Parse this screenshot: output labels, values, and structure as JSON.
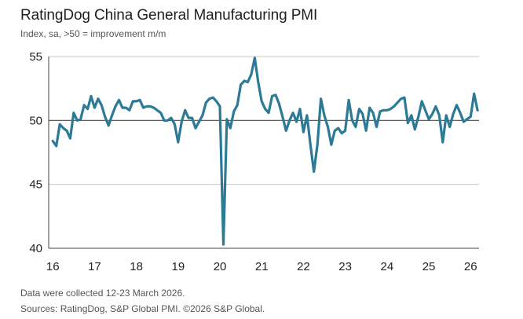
{
  "header": {
    "title": "RatingDog China General Manufacturing PMI",
    "subtitle": "Index, sa, >50 = improvement m/m"
  },
  "footer": {
    "note": "Data were collected 12-23 March 2026.",
    "sources": "Sources: RatingDog, S&P Global PMI. ©2026 S&P Global."
  },
  "colors": {
    "line": "#2c7a96",
    "grid": "#c8c8c8",
    "axis": "#444444"
  },
  "chart_data": {
    "type": "line",
    "title": "RatingDog China General Manufacturing PMI",
    "subtitle": "Index, sa, >50 = improvement m/m",
    "xlabel": "",
    "ylabel": "",
    "ylim": [
      40,
      55
    ],
    "xlim": [
      "2016-01",
      "2026-03"
    ],
    "y_ticks": [
      40,
      45,
      50,
      55
    ],
    "x_ticks": [
      "16",
      "17",
      "18",
      "19",
      "20",
      "21",
      "22",
      "23",
      "24",
      "25",
      "26"
    ],
    "grid": "horizontal",
    "reference_line": 50,
    "series": [
      {
        "values": [
          48.4,
          48.0,
          49.7,
          49.4,
          49.2,
          48.6,
          50.6,
          50.0,
          50.1,
          51.2,
          50.9,
          51.9,
          51.0,
          51.7,
          51.2,
          50.3,
          49.6,
          50.4,
          51.1,
          51.6,
          51.0,
          51.0,
          50.8,
          51.5,
          51.5,
          51.6,
          51.0,
          51.1,
          51.1,
          51.0,
          50.8,
          50.6,
          50.0,
          50.0,
          50.2,
          49.7,
          48.3,
          49.9,
          50.8,
          50.2,
          50.2,
          49.4,
          49.9,
          50.4,
          51.4,
          51.7,
          51.8,
          51.5,
          51.1,
          40.3,
          50.1,
          49.4,
          50.7,
          51.2,
          52.8,
          53.1,
          53.0,
          53.6,
          54.9,
          53.0,
          51.5,
          50.9,
          50.6,
          51.9,
          52.0,
          51.3,
          50.3,
          49.2,
          50.0,
          50.6,
          49.9,
          50.9,
          49.1,
          50.4,
          48.1,
          46.0,
          48.1,
          51.7,
          50.4,
          49.5,
          48.1,
          49.2,
          49.4,
          49.0,
          49.2,
          51.6,
          50.0,
          49.5,
          50.9,
          50.5,
          49.2,
          51.0,
          50.6,
          49.5,
          50.7,
          50.8,
          50.8,
          50.9,
          51.1,
          51.4,
          51.7,
          51.8,
          49.8,
          50.4,
          49.3,
          50.3,
          51.5,
          50.8,
          50.1,
          50.5,
          51.1,
          50.4,
          48.3,
          50.4,
          49.5,
          50.5,
          51.2,
          50.6,
          49.9,
          50.1,
          50.3,
          52.1,
          50.8
        ]
      }
    ]
  }
}
